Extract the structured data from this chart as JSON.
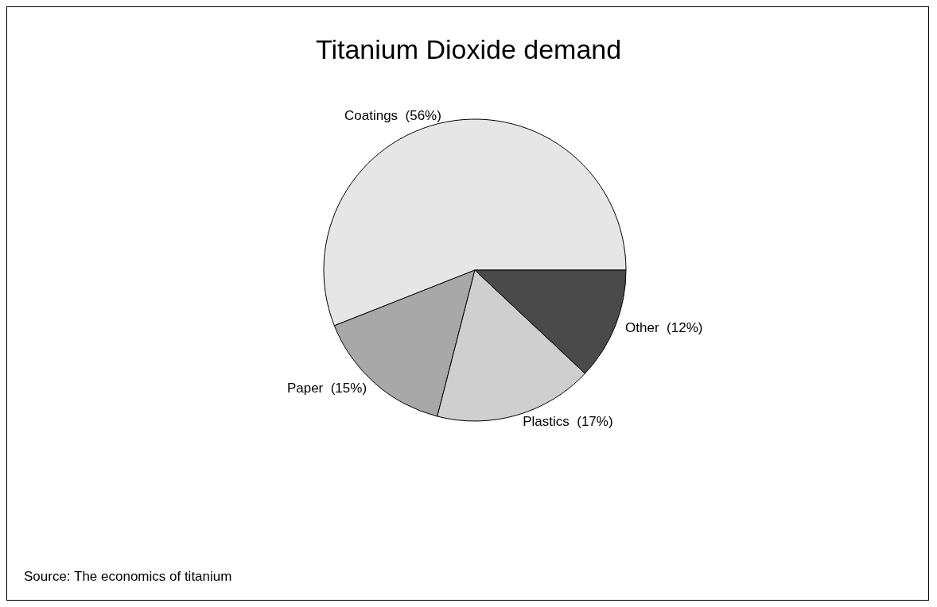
{
  "chart_data": {
    "type": "pie",
    "title": "Titanium Dioxide demand",
    "categories": [
      "Coatings",
      "Paper",
      "Plastics",
      "Other"
    ],
    "values": [
      56,
      15,
      17,
      12
    ],
    "value_labels": [
      "(56%)",
      "(15%)",
      "(17%)",
      "(12%)"
    ],
    "colors": [
      "#e6e6e6",
      "#a8a8a8",
      "#cfcfcf",
      "#4a4a4a"
    ],
    "annotations": [
      "Source: The economics of titanium"
    ],
    "legend": false
  }
}
